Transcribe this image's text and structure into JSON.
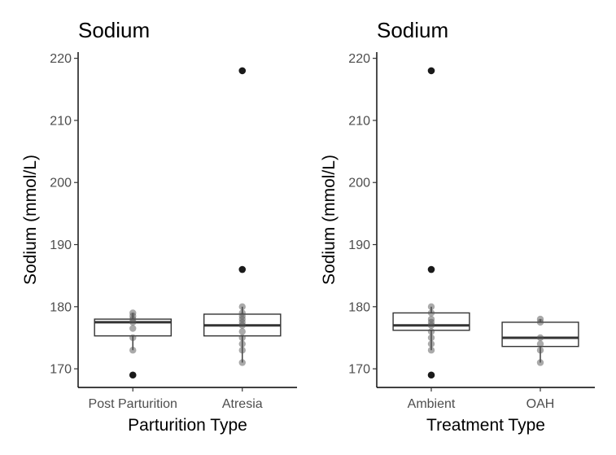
{
  "chart_data": [
    {
      "type": "box",
      "title": "Sodium",
      "xlabel": "Parturition Type",
      "ylabel": "Sodium (mmol/L)",
      "ylim": [
        167,
        221
      ],
      "yticks": [
        170,
        180,
        190,
        200,
        210,
        220
      ],
      "categories": [
        "Post Parturition",
        "Atresia"
      ],
      "groups": [
        {
          "name": "Post Parturition",
          "q1": 175.3,
          "median": 177.5,
          "q3": 178.0,
          "whisker_low": 173,
          "whisker_high": 179,
          "outliers": [
            169
          ],
          "points": [
            173,
            175,
            176.5,
            177.5,
            178,
            178.5,
            179
          ]
        },
        {
          "name": "Atresia",
          "q1": 175.3,
          "median": 177.0,
          "q3": 178.8,
          "whisker_low": 171,
          "whisker_high": 180,
          "outliers": [
            186,
            218
          ],
          "points": [
            171,
            173,
            174,
            175,
            176,
            177,
            177.5,
            178,
            178.5,
            179,
            180
          ]
        }
      ]
    },
    {
      "type": "box",
      "title": "Sodium",
      "xlabel": "Treatment Type",
      "ylabel": "Sodium (mmol/L)",
      "ylim": [
        167,
        221
      ],
      "yticks": [
        170,
        180,
        190,
        200,
        210,
        220
      ],
      "categories": [
        "Ambient",
        "OAH"
      ],
      "groups": [
        {
          "name": "Ambient",
          "q1": 176.2,
          "median": 177.0,
          "q3": 179.0,
          "whisker_low": 173,
          "whisker_high": 180,
          "outliers": [
            169,
            186,
            218
          ],
          "points": [
            173,
            174,
            175,
            176,
            177,
            177.5,
            178,
            179,
            180
          ]
        },
        {
          "name": "OAH",
          "q1": 173.6,
          "median": 175.0,
          "q3": 177.5,
          "whisker_low": 171,
          "whisker_high": 178,
          "outliers": [],
          "points": [
            171,
            173,
            174,
            175,
            177.5,
            178
          ]
        }
      ]
    }
  ]
}
